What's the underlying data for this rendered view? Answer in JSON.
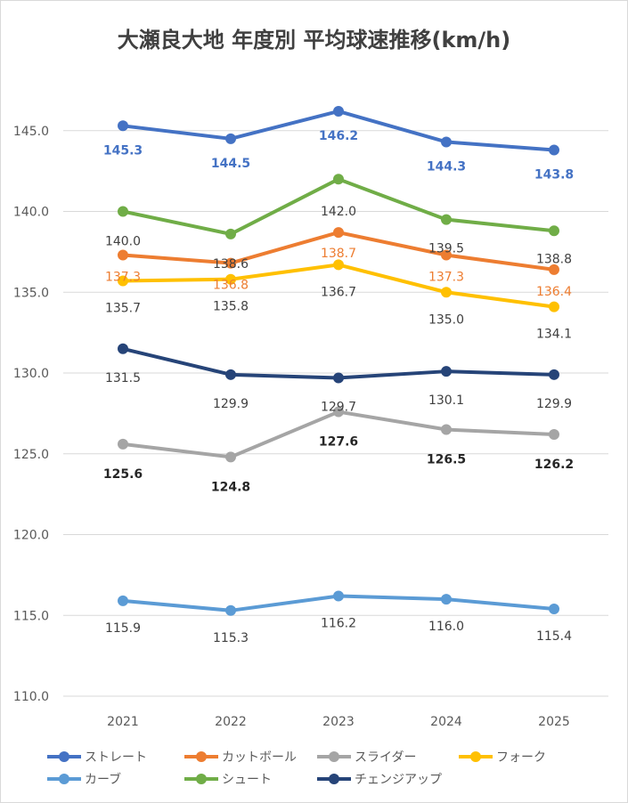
{
  "chart_data": {
    "type": "line",
    "title": "大瀬良大地 年度別 平均球速推移(km/h)",
    "categories": [
      "2021",
      "2022",
      "2023",
      "2024",
      "2025"
    ],
    "ylim": [
      110,
      150
    ],
    "yticks": [
      "110.0",
      "115.0",
      "120.0",
      "125.0",
      "130.0",
      "135.0",
      "140.0",
      "145.0"
    ],
    "grid": true,
    "legend_position": "bottom",
    "series": [
      {
        "name": "ストレート",
        "color": "#4472C4",
        "values": [
          145.3,
          144.5,
          146.2,
          144.3,
          143.8
        ],
        "labels": [
          "145.3",
          "144.5",
          "146.2",
          "144.3",
          "143.8"
        ],
        "label_color": "#4472C4"
      },
      {
        "name": "カットボール",
        "color": "#ED7D31",
        "values": [
          137.3,
          136.8,
          138.7,
          137.3,
          136.4
        ],
        "labels": [
          "137.3",
          "136.8",
          "138.7",
          "137.3",
          "136.4"
        ],
        "label_color": "#ED7D31"
      },
      {
        "name": "スライダー",
        "color": "#A5A5A5",
        "values": [
          125.6,
          124.8,
          127.6,
          126.5,
          126.2
        ],
        "labels": [
          "125.6",
          "124.8",
          "127.6",
          "126.5",
          "126.2"
        ],
        "label_color": "#262626"
      },
      {
        "name": "フォーク",
        "color": "#FFC000",
        "values": [
          135.7,
          135.8,
          136.7,
          135.0,
          134.1
        ],
        "labels": [
          "135.7",
          "135.8",
          "136.7",
          "135.0",
          "134.1"
        ],
        "label_color": "#404040"
      },
      {
        "name": "カーブ",
        "color": "#5B9BD5",
        "values": [
          115.9,
          115.3,
          116.2,
          116.0,
          115.4
        ],
        "labels": [
          "115.9",
          "115.3",
          "116.2",
          "116.0",
          "115.4"
        ],
        "label_color": "#404040"
      },
      {
        "name": "シュート",
        "color": "#70AD47",
        "values": [
          140.0,
          138.6,
          142.0,
          139.5,
          138.8
        ],
        "labels": [
          "140.0",
          "138.6",
          "142.0",
          "139.5",
          "138.8"
        ],
        "label_color": "#404040"
      },
      {
        "name": "チェンジアップ",
        "color": "#264478",
        "values": [
          131.5,
          129.9,
          129.7,
          130.1,
          129.9
        ],
        "labels": [
          "131.5",
          "129.9",
          "129.7",
          "130.1",
          "129.9"
        ],
        "label_color": "#404040"
      }
    ]
  }
}
